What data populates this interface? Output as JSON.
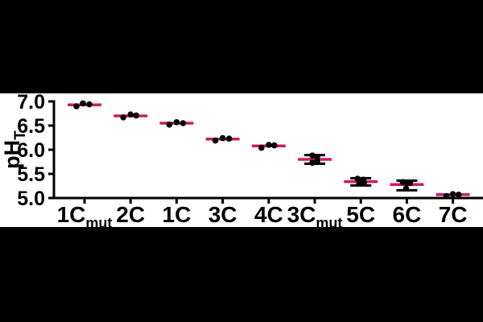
{
  "figure": {
    "background": "#000000",
    "plot_background": "#ffffff"
  },
  "chart_data": {
    "type": "scatter",
    "title": "",
    "xlabel": "",
    "ylabel": "pH",
    "ylabel_sub": "T",
    "ylim": [
      5.0,
      7.0
    ],
    "yticks": [
      7.0,
      6.5,
      6.0,
      5.5,
      5.0
    ],
    "ytick_labels": [
      "7.0",
      "6.5",
      "6.0",
      "5.5",
      "5.0"
    ],
    "grid": false,
    "legend": false,
    "colors": {
      "mean_line": "#CF1A68",
      "point": "#000000",
      "error_bar": "#000000",
      "axis": "#000000",
      "text": "#000000"
    },
    "categories": [
      {
        "label": "1Cmut",
        "base": "1C",
        "sub": "mut",
        "mean": 6.93,
        "points": [
          [
            -10,
            6.9
          ],
          [
            -2,
            6.96
          ],
          [
            6,
            6.94
          ]
        ],
        "err": null
      },
      {
        "label": "2C",
        "base": "2C",
        "sub": "",
        "mean": 6.7,
        "points": [
          [
            -9,
            6.67
          ],
          [
            0,
            6.73
          ],
          [
            7,
            6.71
          ]
        ],
        "err": null
      },
      {
        "label": "1C",
        "base": "1C",
        "sub": "",
        "mean": 6.55,
        "points": [
          [
            -9,
            6.52
          ],
          [
            0,
            6.57
          ],
          [
            8,
            6.55
          ]
        ],
        "err": null
      },
      {
        "label": "3C",
        "base": "3C",
        "sub": "",
        "mean": 6.22,
        "points": [
          [
            -9,
            6.19
          ],
          [
            0,
            6.24
          ],
          [
            8,
            6.23
          ]
        ],
        "err": null
      },
      {
        "label": "4C",
        "base": "4C",
        "sub": "",
        "mean": 6.08,
        "points": [
          [
            -9,
            6.04
          ],
          [
            0,
            6.1
          ],
          [
            7,
            6.09
          ]
        ],
        "err": null
      },
      {
        "label": "3Cmut",
        "base": "3C",
        "sub": "mut",
        "mean": 5.8,
        "points": [
          [
            -3,
            5.88
          ],
          [
            3,
            5.85
          ],
          [
            -3,
            5.73
          ],
          [
            3,
            5.76
          ]
        ],
        "err": [
          5.71,
          5.89
        ]
      },
      {
        "label": "5C",
        "base": "5C",
        "sub": "",
        "mean": 5.34,
        "points": [
          [
            -4,
            5.4
          ],
          [
            3,
            5.38
          ],
          [
            -2,
            5.3
          ],
          [
            4,
            5.32
          ]
        ],
        "err": [
          5.26,
          5.41
        ]
      },
      {
        "label": "6C",
        "base": "6C",
        "sub": "",
        "mean": 5.28,
        "points": [
          [
            -5,
            5.33
          ],
          [
            0,
            5.32
          ],
          [
            4,
            5.31
          ],
          [
            -1,
            5.2
          ]
        ],
        "err": [
          5.16,
          5.36
        ]
      },
      {
        "label": "7C",
        "base": "7C",
        "sub": "",
        "mean": 5.07,
        "points": [
          [
            -8,
            5.04
          ],
          [
            0,
            5.08
          ],
          [
            7,
            5.07
          ]
        ],
        "err": null
      }
    ]
  }
}
